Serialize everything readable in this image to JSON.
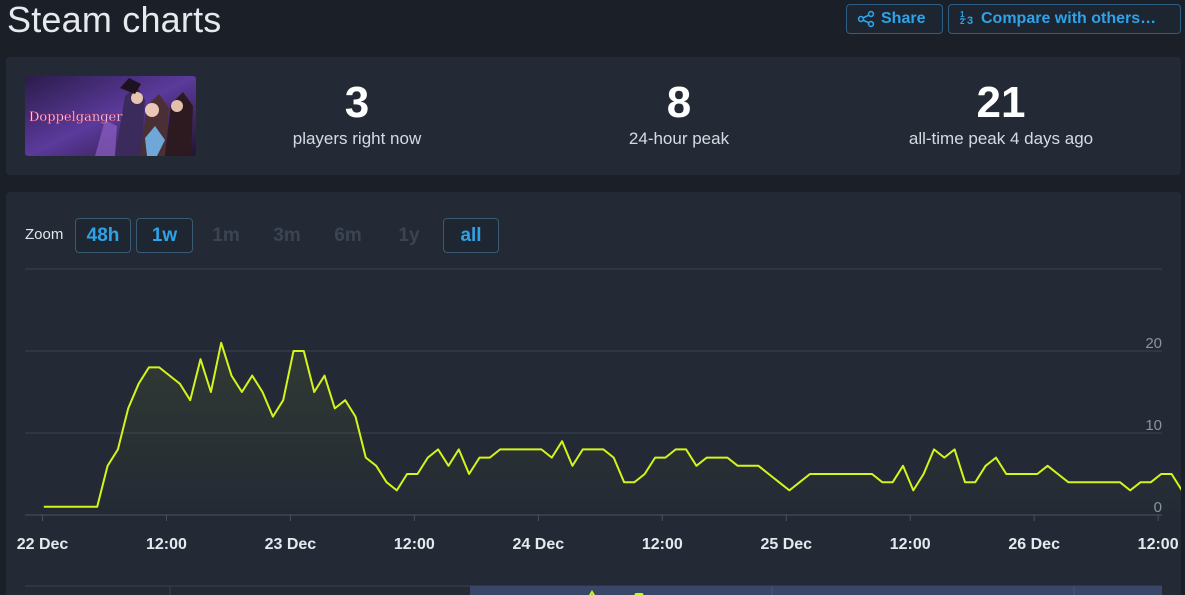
{
  "page": {
    "title": "Steam charts"
  },
  "header": {
    "share_label": "Share",
    "compare_label": "Compare with others…"
  },
  "game": {
    "thumbnail_text": "Doppelganger"
  },
  "stats": {
    "now": {
      "value": "3",
      "label": "players right now"
    },
    "peak24": {
      "value": "8",
      "label": "24-hour peak"
    },
    "alltime": {
      "value": "21",
      "label": "all-time peak 4 days ago"
    }
  },
  "zoom": {
    "label": "Zoom",
    "options": [
      {
        "label": "48h",
        "state": "active"
      },
      {
        "label": "1w",
        "state": "active"
      },
      {
        "label": "1m",
        "state": "disabled"
      },
      {
        "label": "3m",
        "state": "disabled"
      },
      {
        "label": "6m",
        "state": "disabled"
      },
      {
        "label": "1y",
        "state": "disabled"
      },
      {
        "label": "all",
        "state": "active"
      }
    ]
  },
  "colors": {
    "accent": "#2fa2e8",
    "line": "#d4f51c",
    "background": "#1b2028",
    "panel": "#232a35"
  },
  "chart_data": {
    "type": "line",
    "title": "",
    "xlabel": "",
    "ylabel": "",
    "ylim": [
      0,
      30
    ],
    "xlim_hours": [
      -6,
      114
    ],
    "x_ticks": [
      {
        "hour": 0,
        "label": "22 Dec"
      },
      {
        "hour": 12,
        "label": "12:00"
      },
      {
        "hour": 24,
        "label": "23 Dec"
      },
      {
        "hour": 36,
        "label": "12:00"
      },
      {
        "hour": 48,
        "label": "24 Dec"
      },
      {
        "hour": 60,
        "label": "12:00"
      },
      {
        "hour": 72,
        "label": "25 Dec"
      },
      {
        "hour": 84,
        "label": "12:00"
      },
      {
        "hour": 96,
        "label": "26 Dec"
      },
      {
        "hour": 108,
        "label": "12:00"
      }
    ],
    "y_ticks": [
      0,
      10,
      20
    ],
    "series": [
      {
        "values": [
          [
            0.2,
            1
          ],
          [
            5.3,
            1
          ],
          [
            6.3,
            6
          ],
          [
            7.3,
            8
          ],
          [
            8.3,
            13
          ],
          [
            9.3,
            16
          ],
          [
            10.3,
            18
          ],
          [
            11.3,
            18
          ],
          [
            12.3,
            17
          ],
          [
            13.3,
            16
          ],
          [
            14.3,
            14
          ],
          [
            15.3,
            19
          ],
          [
            16.3,
            15
          ],
          [
            17.3,
            21
          ],
          [
            18.3,
            17
          ],
          [
            19.3,
            15
          ],
          [
            20.3,
            17
          ],
          [
            21.3,
            15
          ],
          [
            22.3,
            12
          ],
          [
            23.3,
            14
          ],
          [
            24.3,
            20
          ],
          [
            25.3,
            20
          ],
          [
            26.3,
            15
          ],
          [
            27.3,
            17
          ],
          [
            28.3,
            13
          ],
          [
            29.3,
            14
          ],
          [
            30.3,
            12
          ],
          [
            31.3,
            7
          ],
          [
            32.3,
            6
          ],
          [
            33.3,
            4
          ],
          [
            34.3,
            3
          ],
          [
            35.3,
            5
          ],
          [
            36.3,
            5
          ],
          [
            37.3,
            7
          ],
          [
            38.3,
            8
          ],
          [
            39.3,
            6
          ],
          [
            40.3,
            8
          ],
          [
            41.3,
            5
          ],
          [
            42.3,
            7
          ],
          [
            43.3,
            7
          ],
          [
            44.3,
            8
          ],
          [
            45.3,
            8
          ],
          [
            46.3,
            8
          ],
          [
            47.3,
            8
          ],
          [
            48.3,
            8
          ],
          [
            49.3,
            7
          ],
          [
            50.3,
            9
          ],
          [
            51.3,
            6
          ],
          [
            52.3,
            8
          ],
          [
            53.3,
            8
          ],
          [
            54.3,
            8
          ],
          [
            55.3,
            7
          ],
          [
            56.3,
            4
          ],
          [
            57.3,
            4
          ],
          [
            58.3,
            5
          ],
          [
            59.3,
            7
          ],
          [
            60.3,
            7
          ],
          [
            61.3,
            8
          ],
          [
            62.3,
            8
          ],
          [
            63.3,
            6
          ],
          [
            64.3,
            7
          ],
          [
            65.3,
            7
          ],
          [
            66.3,
            7
          ],
          [
            67.3,
            6
          ],
          [
            68.3,
            6
          ],
          [
            69.3,
            6
          ],
          [
            70.3,
            5
          ],
          [
            71.3,
            4
          ],
          [
            72.3,
            3
          ],
          [
            73.3,
            4
          ],
          [
            74.3,
            5
          ],
          [
            75.3,
            5
          ],
          [
            76.3,
            5
          ],
          [
            77.3,
            5
          ],
          [
            78.3,
            5
          ],
          [
            79.3,
            5
          ],
          [
            80.3,
            5
          ],
          [
            81.3,
            4
          ],
          [
            82.3,
            4
          ],
          [
            83.3,
            6
          ],
          [
            84.3,
            3
          ],
          [
            85.3,
            5
          ],
          [
            86.3,
            8
          ],
          [
            87.3,
            7
          ],
          [
            88.3,
            8
          ],
          [
            89.3,
            4
          ],
          [
            90.3,
            4
          ],
          [
            91.3,
            6
          ],
          [
            92.3,
            7
          ],
          [
            93.3,
            5
          ],
          [
            94.3,
            5
          ],
          [
            95.3,
            5
          ],
          [
            96.3,
            5
          ],
          [
            97.3,
            6
          ],
          [
            98.3,
            5
          ],
          [
            99.3,
            4
          ],
          [
            100.3,
            4
          ],
          [
            101.3,
            4
          ],
          [
            102.3,
            4
          ],
          [
            103.3,
            4
          ],
          [
            104.3,
            4
          ],
          [
            105.3,
            3
          ],
          [
            106.3,
            4
          ],
          [
            107.3,
            4
          ],
          [
            108.3,
            5
          ],
          [
            109.3,
            5
          ],
          [
            110.3,
            3
          ]
        ]
      }
    ]
  }
}
